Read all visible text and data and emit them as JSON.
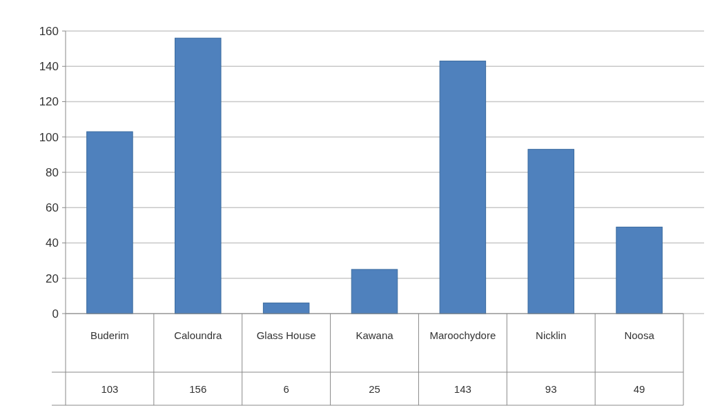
{
  "chart_data": {
    "type": "bar",
    "categories": [
      "Buderim",
      "Caloundra",
      "Glass House",
      "Kawana",
      "Maroochydore",
      "Nicklin",
      "Noosa"
    ],
    "values": [
      103,
      156,
      6,
      25,
      143,
      93,
      49
    ],
    "color": "#4f81bd",
    "ylim": [
      0,
      160
    ],
    "yticks": [
      0,
      20,
      40,
      60,
      80,
      100,
      120,
      140,
      160
    ],
    "grid": "y",
    "data_labels": true
  }
}
